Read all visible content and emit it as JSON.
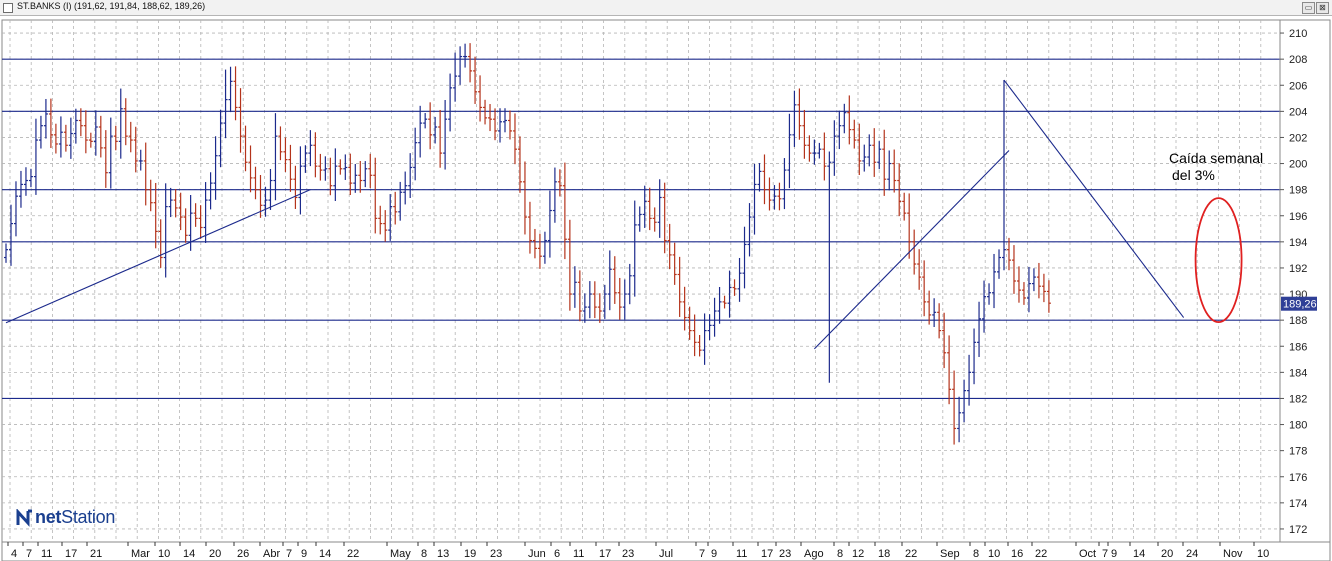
{
  "window": {
    "title": "ST.BANKS (I) (191,62, 191,84, 188,62, 189,26)",
    "restore_glyph": "▭",
    "close_glyph": "⊠"
  },
  "logo": {
    "prefix": "net",
    "suffix": "Station",
    "icon": "netstation-logo-icon"
  },
  "annotation": {
    "line1": "Caída semanal",
    "line2": "del 3%"
  },
  "colors": {
    "up": "#1c2a8c",
    "down": "#b4331b",
    "hline": "#1c2a8c",
    "trend": "#1c2a8c",
    "highlight": "#e02020",
    "grid": "#b5b5b5",
    "last_price_bg": "#2f3f97"
  },
  "chart_data": {
    "type": "ohlc",
    "ylim": [
      171,
      211
    ],
    "y_ticks": [
      172,
      174,
      176,
      178,
      180,
      182,
      184,
      186,
      188,
      190,
      192,
      194,
      196,
      198,
      200,
      202,
      204,
      206,
      208,
      210
    ],
    "last_price": "189,26",
    "horizontal_lines": [
      208,
      204,
      198,
      194,
      188,
      182
    ],
    "x_labels": [
      "4",
      "7",
      "11",
      "17",
      "21",
      "Mar",
      "10",
      "14",
      "20",
      "26",
      "Abr",
      "7",
      "9",
      "14",
      "22",
      "May",
      "8",
      "13",
      "19",
      "23",
      "Jun",
      "6",
      "11",
      "17",
      "23",
      "Jul",
      "7",
      "9",
      "11",
      "17",
      "23",
      "Ago",
      "8",
      "12",
      "18",
      "22",
      "Sep",
      "8",
      "10",
      "16",
      "22",
      "Oct",
      "7",
      "9",
      "14",
      "20",
      "24",
      "Nov",
      "10"
    ],
    "trendlines": [
      {
        "from": [
          0,
          187.8
        ],
        "to": [
          61,
          198.0
        ]
      },
      {
        "from": [
          162,
          185.8
        ],
        "to": [
          201,
          201.0
        ]
      },
      {
        "from": [
          200,
          206.4
        ],
        "to": [
          236,
          188.2
        ]
      }
    ],
    "highlight": {
      "center": [
        243,
        192.6
      ],
      "label": "Caída semanal del 3%"
    },
    "closes": [
      193.4,
      195.4,
      197.5,
      198.4,
      198.7,
      199.0,
      201.8,
      202.9,
      203.8,
      202.2,
      201.5,
      202.4,
      201.4,
      202.3,
      203.3,
      202.9,
      201.8,
      201.7,
      202.8,
      201.2,
      199.3,
      202.1,
      201.7,
      204.2,
      202.1,
      201.8,
      200.2,
      200.2,
      198.0,
      197.0,
      194.8,
      192.8,
      196.7,
      197.2,
      196.6,
      195.9,
      194.5,
      196.2,
      195.8,
      195.1,
      197.2,
      198.5,
      200.6,
      203.1,
      204.9,
      206.3,
      204.3,
      202.1,
      200.1,
      198.9,
      198.0,
      196.8,
      197.2,
      198.7,
      202.1,
      200.9,
      200.3,
      198.8,
      197.4,
      199.8,
      200.8,
      201.4,
      199.8,
      199.5,
      199.6,
      198.3,
      199.8,
      199.6,
      199.7,
      198.5,
      199.1,
      198.7,
      199.6,
      199.1,
      195.8,
      195.4,
      194.9,
      196.7,
      196.3,
      197.8,
      198.3,
      199.7,
      201.6,
      203.1,
      203.4,
      202.2,
      202.8,
      200.8,
      203.4,
      205.8,
      206.7,
      208.2,
      208.2,
      207.1,
      205.5,
      204.3,
      203.5,
      203.4,
      202.5,
      203.2,
      203.3,
      202.5,
      201.1,
      198.6,
      195.9,
      194.1,
      193.5,
      192.9,
      194.1,
      196.4,
      198.6,
      198.3,
      194.2,
      190.0,
      190.9,
      188.7,
      189.0,
      190.0,
      189.0,
      188.7,
      190.0,
      191.9,
      190.1,
      189.0,
      190.0,
      191.4,
      195.3,
      196.1,
      197.1,
      195.8,
      195.5,
      197.4,
      194.1,
      193.0,
      191.5,
      189.4,
      188.2,
      187.2,
      186.3,
      185.7,
      187.2,
      187.6,
      188.7,
      189.4,
      189.3,
      190.5,
      190.4,
      191.6,
      193.8,
      195.9,
      198.4,
      199.4,
      198.0,
      197.2,
      197.5,
      197.3,
      199.5,
      202.2,
      204.5,
      202.9,
      201.4,
      200.8,
      200.8,
      201.1,
      199.8,
      200.1,
      202.1,
      202.9,
      203.9,
      202.6,
      201.8,
      200.2,
      200.5,
      201.4,
      200.1,
      201.1,
      198.8,
      200.0,
      198.7,
      197.1,
      196.2,
      194.0,
      192.3,
      191.3,
      189.4,
      188.4,
      188.6,
      187.2,
      185.5,
      182.7,
      179.7,
      180.9,
      182.6,
      184.0,
      186.3,
      188.1,
      189.8,
      190.1,
      191.7,
      192.8,
      193.4,
      192.6,
      191.0,
      190.3,
      189.7,
      190.8,
      191.3,
      190.6,
      190.2,
      189.3
    ]
  }
}
